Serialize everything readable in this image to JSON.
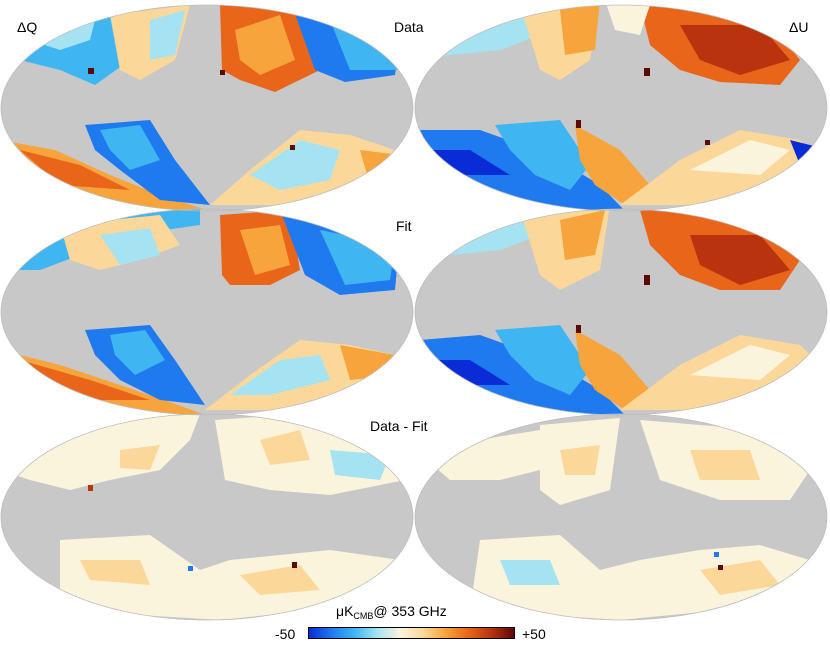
{
  "figure": {
    "column_labels": [
      "ΔQ",
      "ΔU"
    ],
    "row_labels": [
      "Data",
      "Fit",
      "Data - Fit"
    ],
    "colorbar": {
      "unit_main": "μK",
      "unit_sub": "CMB",
      "unit_rest": "@ 353 GHz",
      "min_label": "-50",
      "max_label": "+50",
      "colors": [
        "#0a2cd6",
        "#1f7af0",
        "#3fb6f2",
        "#a6e3f2",
        "#fbf4dd",
        "#fbd89a",
        "#f7a43c",
        "#e8651a",
        "#b8330e",
        "#5a0a08"
      ]
    },
    "mask_color": "#c8c8c8"
  }
}
